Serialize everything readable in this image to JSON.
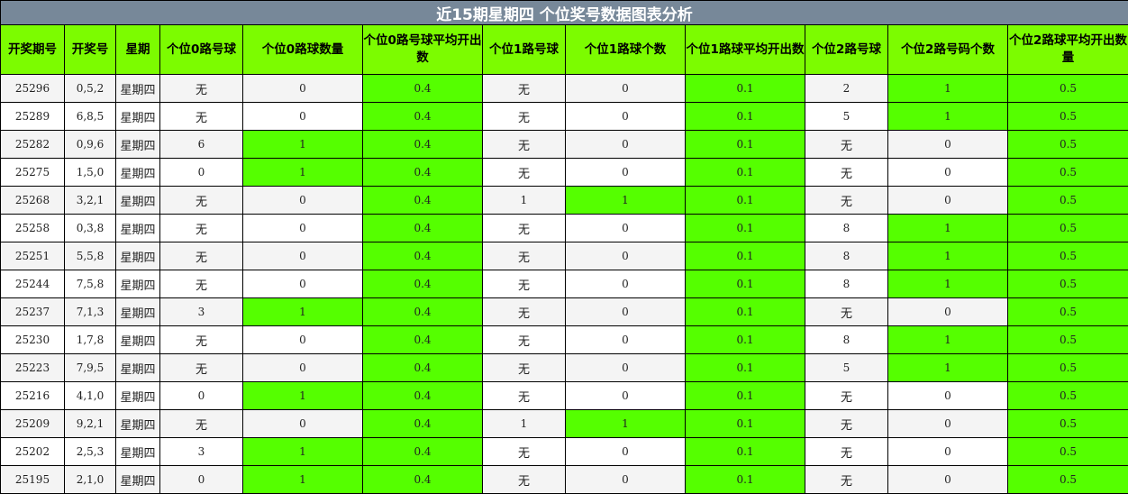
{
  "title": "近15期星期四 个位奖号数据图表分析",
  "colors": {
    "title_bg": "#778899",
    "header_bg": "#7cfc00",
    "highlight": "#55ff00",
    "stripe": "#f4f4f4"
  },
  "columns": [
    "开奖期号",
    "开奖号",
    "星期",
    "个位0路号球",
    "个位0路球数量",
    "个位0路号球平均开出数",
    "个位1路号球",
    "个位1路球个数",
    "个位1路球平均开出数",
    "个位2路号球",
    "个位2路号码个数",
    "个位2路球平均开出数量"
  ],
  "rows": [
    [
      "25296",
      "0,5,2",
      "星期四",
      "无",
      "0",
      "0.4",
      "无",
      "0",
      "0.1",
      "2",
      "1",
      "0.5"
    ],
    [
      "25289",
      "6,8,5",
      "星期四",
      "无",
      "0",
      "0.4",
      "无",
      "0",
      "0.1",
      "5",
      "1",
      "0.5"
    ],
    [
      "25282",
      "0,9,6",
      "星期四",
      "6",
      "1",
      "0.4",
      "无",
      "0",
      "0.1",
      "无",
      "0",
      "0.5"
    ],
    [
      "25275",
      "1,5,0",
      "星期四",
      "0",
      "1",
      "0.4",
      "无",
      "0",
      "0.1",
      "无",
      "0",
      "0.5"
    ],
    [
      "25268",
      "3,2,1",
      "星期四",
      "无",
      "0",
      "0.4",
      "1",
      "1",
      "0.1",
      "无",
      "0",
      "0.5"
    ],
    [
      "25258",
      "0,3,8",
      "星期四",
      "无",
      "0",
      "0.4",
      "无",
      "0",
      "0.1",
      "8",
      "1",
      "0.5"
    ],
    [
      "25251",
      "5,5,8",
      "星期四",
      "无",
      "0",
      "0.4",
      "无",
      "0",
      "0.1",
      "8",
      "1",
      "0.5"
    ],
    [
      "25244",
      "7,5,8",
      "星期四",
      "无",
      "0",
      "0.4",
      "无",
      "0",
      "0.1",
      "8",
      "1",
      "0.5"
    ],
    [
      "25237",
      "7,1,3",
      "星期四",
      "3",
      "1",
      "0.4",
      "无",
      "0",
      "0.1",
      "无",
      "0",
      "0.5"
    ],
    [
      "25230",
      "1,7,8",
      "星期四",
      "无",
      "0",
      "0.4",
      "无",
      "0",
      "0.1",
      "8",
      "1",
      "0.5"
    ],
    [
      "25223",
      "7,9,5",
      "星期四",
      "无",
      "0",
      "0.4",
      "无",
      "0",
      "0.1",
      "5",
      "1",
      "0.5"
    ],
    [
      "25216",
      "4,1,0",
      "星期四",
      "0",
      "1",
      "0.4",
      "无",
      "0",
      "0.1",
      "无",
      "0",
      "0.5"
    ],
    [
      "25209",
      "9,2,1",
      "星期四",
      "无",
      "0",
      "0.4",
      "1",
      "1",
      "0.1",
      "无",
      "0",
      "0.5"
    ],
    [
      "25202",
      "2,5,3",
      "星期四",
      "3",
      "1",
      "0.4",
      "无",
      "0",
      "0.1",
      "无",
      "0",
      "0.5"
    ],
    [
      "25195",
      "2,1,0",
      "星期四",
      "0",
      "1",
      "0.4",
      "无",
      "0",
      "0.1",
      "无",
      "0",
      "0.5"
    ]
  ]
}
